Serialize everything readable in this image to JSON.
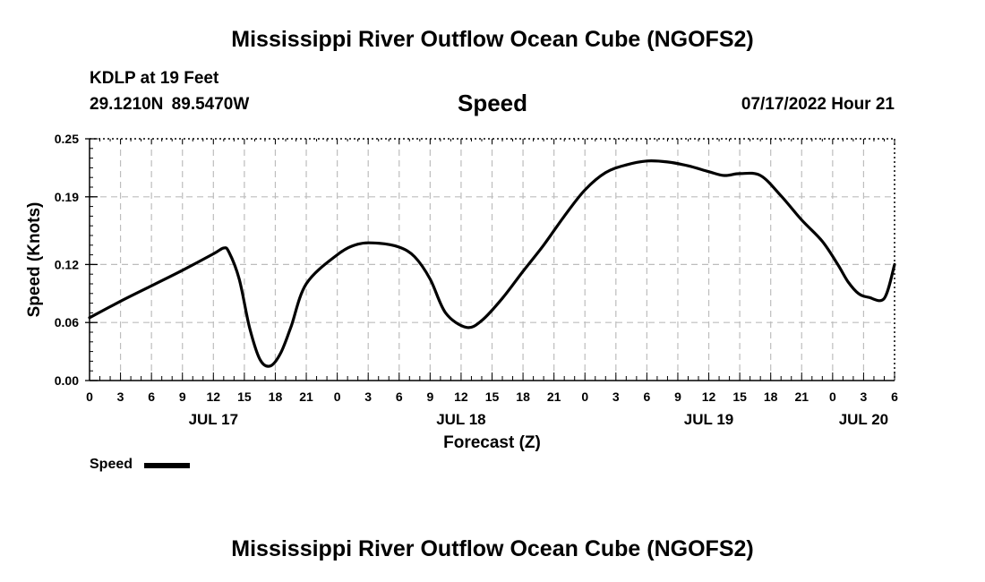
{
  "header": {
    "title": "Mississippi River Outflow Ocean Cube (NGOFS2)",
    "station": "KDLP at 19 Feet",
    "coordinates": "29.1210N  89.5470W",
    "variable": "Speed",
    "datetime": "07/17/2022 Hour 21"
  },
  "footer": {
    "title": "Mississippi River Outflow Ocean Cube (NGOFS2)"
  },
  "legend": {
    "label": "Speed"
  },
  "chart_data": {
    "type": "line",
    "title": "Speed",
    "xlabel": "Forecast (Z)",
    "ylabel": "Speed (Knots)",
    "x_unit": "hours since 07/17/2022 00Z",
    "xlim": [
      0,
      78
    ],
    "ylim": [
      0.0,
      0.25
    ],
    "y_ticks": [
      0.0,
      0.06,
      0.12,
      0.19,
      0.25
    ],
    "y_tick_labels": [
      "0.00",
      "0.06",
      "0.12",
      "0.19",
      "0.25"
    ],
    "x_ticks": [
      0,
      3,
      6,
      9,
      12,
      15,
      18,
      21,
      24,
      27,
      30,
      33,
      36,
      39,
      42,
      45,
      48,
      51,
      54,
      57,
      60,
      63,
      66,
      69,
      72,
      75,
      78
    ],
    "x_tick_labels": [
      "0",
      "3",
      "6",
      "9",
      "12",
      "15",
      "18",
      "21",
      "0",
      "3",
      "6",
      "9",
      "12",
      "15",
      "18",
      "21",
      "0",
      "3",
      "6",
      "9",
      "12",
      "15",
      "18",
      "21",
      "0",
      "3",
      "6"
    ],
    "date_labels": [
      {
        "hour": 12,
        "label": "JUL 17"
      },
      {
        "hour": 36,
        "label": "JUL 18"
      },
      {
        "hour": 60,
        "label": "JUL 19"
      },
      {
        "hour": 75,
        "label": "JUL 20"
      }
    ],
    "grid": true,
    "series": [
      {
        "name": "Speed",
        "color": "#000000",
        "x": [
          0,
          3,
          6,
          9,
          12,
          13,
          13.5,
          14.5,
          15.5,
          16.5,
          17.5,
          18.5,
          19.5,
          21,
          24,
          26,
          28,
          30,
          31.5,
          33,
          34.5,
          36.5,
          38,
          40,
          42,
          44,
          46,
          48,
          50,
          52,
          54,
          56,
          58,
          60,
          61.5,
          63,
          65,
          67,
          69,
          71,
          72.5,
          73.5,
          74.5,
          75.5,
          77,
          78
        ],
        "y": [
          0.065,
          0.082,
          0.098,
          0.114,
          0.131,
          0.137,
          0.133,
          0.105,
          0.055,
          0.022,
          0.015,
          0.028,
          0.055,
          0.1,
          0.13,
          0.141,
          0.142,
          0.138,
          0.128,
          0.105,
          0.07,
          0.055,
          0.062,
          0.085,
          0.113,
          0.14,
          0.17,
          0.197,
          0.215,
          0.223,
          0.227,
          0.226,
          0.222,
          0.216,
          0.212,
          0.214,
          0.212,
          0.191,
          0.166,
          0.144,
          0.12,
          0.102,
          0.09,
          0.086,
          0.085,
          0.12
        ]
      }
    ]
  }
}
